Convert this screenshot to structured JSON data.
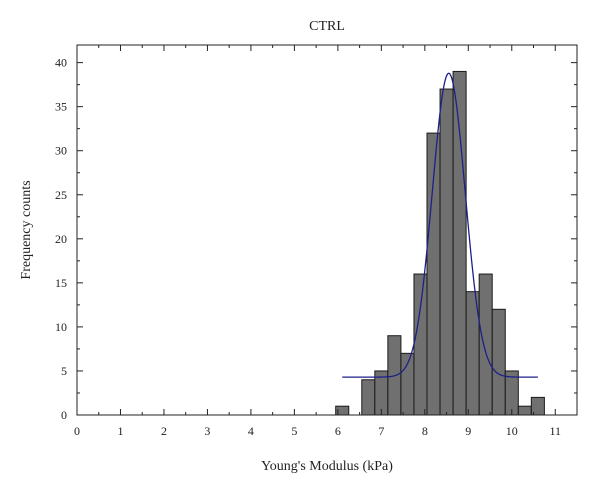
{
  "chart_data": {
    "type": "bar",
    "title": "CTRL",
    "xlabel": "Young's Modulus (kPa)",
    "ylabel": "Frequency counts",
    "xlim": [
      0,
      11.5
    ],
    "ylim": [
      0,
      42
    ],
    "x_ticks": [
      0,
      1,
      2,
      3,
      4,
      5,
      6,
      7,
      8,
      9,
      10,
      11
    ],
    "y_ticks": [
      0,
      5,
      10,
      15,
      20,
      25,
      30,
      35,
      40
    ],
    "bin_width": 0.3,
    "bins": [
      {
        "center": 6.1,
        "count": 1
      },
      {
        "center": 6.7,
        "count": 4
      },
      {
        "center": 7.0,
        "count": 5
      },
      {
        "center": 7.3,
        "count": 9
      },
      {
        "center": 7.6,
        "count": 7
      },
      {
        "center": 7.9,
        "count": 16
      },
      {
        "center": 8.2,
        "count": 32
      },
      {
        "center": 8.5,
        "count": 37
      },
      {
        "center": 8.8,
        "count": 39
      },
      {
        "center": 9.1,
        "count": 14
      },
      {
        "center": 9.4,
        "count": 16
      },
      {
        "center": 9.7,
        "count": 12
      },
      {
        "center": 10.0,
        "count": 5
      },
      {
        "center": 10.3,
        "count": 1
      },
      {
        "center": 10.6,
        "count": 2
      }
    ],
    "fit": {
      "type": "gaussian",
      "x_range": [
        6.1,
        10.6
      ],
      "baseline": 4.3,
      "amplitude": 34.5,
      "center": 8.55,
      "sigma": 0.38
    },
    "grid": false,
    "legend": "none",
    "colors": {
      "bar_fill": "#707070",
      "bar_stroke": "#1a1a1a",
      "fit_line": "#1f1f8a",
      "axis": "#222222"
    }
  }
}
